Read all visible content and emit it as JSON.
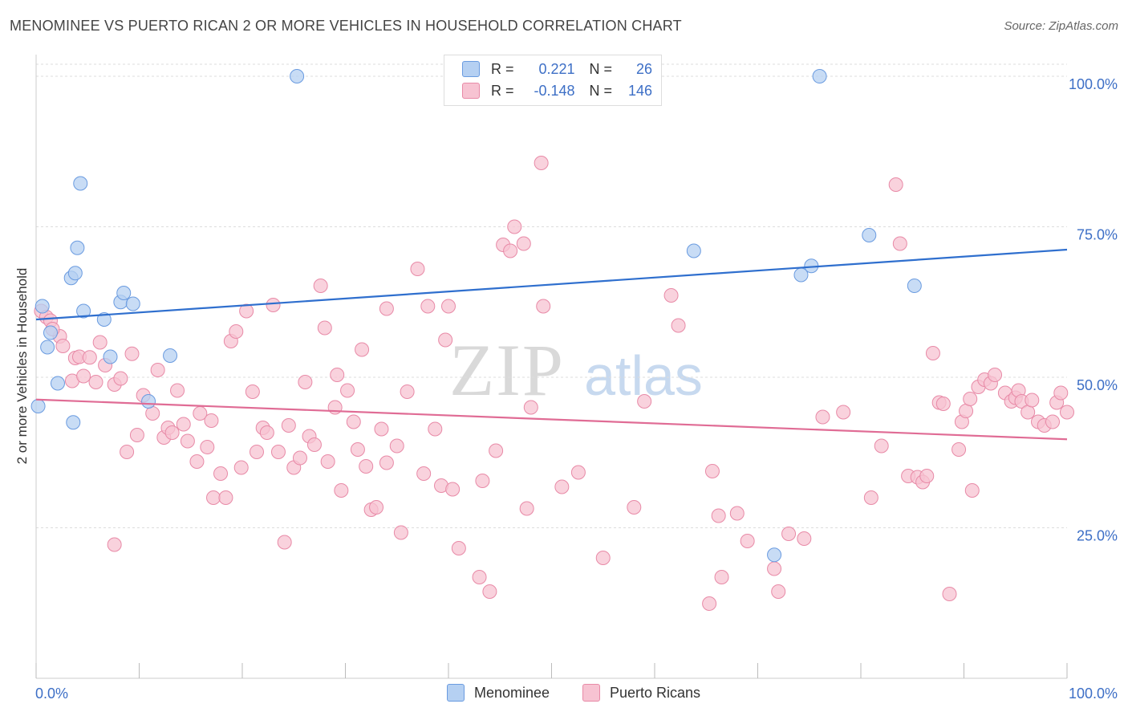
{
  "header": {
    "title": "MENOMINEE VS PUERTO RICAN 2 OR MORE VEHICLES IN HOUSEHOLD CORRELATION CHART",
    "source": "Source: ZipAtlas.com"
  },
  "watermark": {
    "zip": "ZIP",
    "atlas": "atlas"
  },
  "legend": {
    "rows": [
      {
        "r_label": "R =",
        "r_value": "0.221",
        "n_label": "N =",
        "n_value": "26"
      },
      {
        "r_label": "R =",
        "r_value": "-0.148",
        "n_label": "N =",
        "n_value": "146"
      }
    ]
  },
  "bottom_legend": {
    "series0": "Menominee",
    "series1": "Puerto Ricans"
  },
  "chart_data": {
    "type": "scatter",
    "title": "MENOMINEE VS PUERTO RICAN 2 OR MORE VEHICLES IN HOUSEHOLD CORRELATION CHART",
    "xlabel": "",
    "ylabel": "2 or more Vehicles in Household",
    "xlim": [
      0,
      100
    ],
    "ylim": [
      0,
      102
    ],
    "x_tick_labels": [
      "0.0%",
      "100.0%"
    ],
    "y_ticks": [
      25,
      50,
      75,
      100
    ],
    "y_tick_labels": [
      "25.0%",
      "50.0%",
      "75.0%",
      "100.0%"
    ],
    "grid": true,
    "colors": {
      "menominee_fill": "#b5d0f2",
      "menominee_stroke": "#6a9be0",
      "menominee_line": "#2f6fce",
      "pr_fill": "#f7c3d2",
      "pr_stroke": "#e88aa7",
      "pr_line": "#e06c95",
      "tick_text": "#3d6fc6",
      "grid": "#dddddd"
    },
    "series": [
      {
        "name": "Menominee",
        "trend": {
          "x0": 0,
          "y0": 59.6,
          "x1": 100,
          "y1": 71.2
        },
        "points": [
          [
            0.2,
            45.2
          ],
          [
            0.6,
            61.8
          ],
          [
            1.1,
            55.0
          ],
          [
            1.4,
            57.4
          ],
          [
            2.1,
            49.0
          ],
          [
            3.4,
            66.5
          ],
          [
            3.8,
            67.3
          ],
          [
            4.0,
            71.5
          ],
          [
            3.6,
            42.5
          ],
          [
            4.3,
            82.2
          ],
          [
            4.6,
            61.0
          ],
          [
            6.6,
            59.6
          ],
          [
            7.2,
            53.4
          ],
          [
            8.2,
            62.5
          ],
          [
            8.5,
            64.0
          ],
          [
            9.4,
            62.2
          ],
          [
            10.9,
            46.0
          ],
          [
            13.0,
            53.6
          ],
          [
            25.3,
            100.0
          ],
          [
            63.8,
            71.0
          ],
          [
            74.2,
            67.0
          ],
          [
            75.2,
            68.5
          ],
          [
            76.0,
            100.0
          ],
          [
            80.8,
            73.6
          ],
          [
            85.2,
            65.2
          ],
          [
            71.6,
            20.5
          ]
        ]
      },
      {
        "name": "Puerto Ricans",
        "trend": {
          "x0": 0,
          "y0": 46.3,
          "x1": 100,
          "y1": 39.7
        },
        "points": [
          [
            0.5,
            61.0
          ],
          [
            1.0,
            60.0
          ],
          [
            1.4,
            59.4
          ],
          [
            2.3,
            56.8
          ],
          [
            2.6,
            55.2
          ],
          [
            3.5,
            49.4
          ],
          [
            3.8,
            53.2
          ],
          [
            4.2,
            53.4
          ],
          [
            4.6,
            50.2
          ],
          [
            5.2,
            53.3
          ],
          [
            5.8,
            49.2
          ],
          [
            6.2,
            55.8
          ],
          [
            6.7,
            52.0
          ],
          [
            7.6,
            48.8
          ],
          [
            7.6,
            22.2
          ],
          [
            8.2,
            49.8
          ],
          [
            8.8,
            37.6
          ],
          [
            9.3,
            53.9
          ],
          [
            9.8,
            40.4
          ],
          [
            10.4,
            47.0
          ],
          [
            11.3,
            44.0
          ],
          [
            11.8,
            51.2
          ],
          [
            12.4,
            40.0
          ],
          [
            12.8,
            41.6
          ],
          [
            13.2,
            40.8
          ],
          [
            13.7,
            47.8
          ],
          [
            14.3,
            42.2
          ],
          [
            14.7,
            39.4
          ],
          [
            15.6,
            36.0
          ],
          [
            15.9,
            44.0
          ],
          [
            16.6,
            38.4
          ],
          [
            17.0,
            42.8
          ],
          [
            17.2,
            30.0
          ],
          [
            17.9,
            34.0
          ],
          [
            18.4,
            30.0
          ],
          [
            18.9,
            56.0
          ],
          [
            19.4,
            57.6
          ],
          [
            19.9,
            35.0
          ],
          [
            20.4,
            61.0
          ],
          [
            21.0,
            47.6
          ],
          [
            21.4,
            37.6
          ],
          [
            22.0,
            41.6
          ],
          [
            22.4,
            40.8
          ],
          [
            23.0,
            62.0
          ],
          [
            23.5,
            37.6
          ],
          [
            24.1,
            22.6
          ],
          [
            24.5,
            42.0
          ],
          [
            25.0,
            35.0
          ],
          [
            25.6,
            36.6
          ],
          [
            26.1,
            49.2
          ],
          [
            26.5,
            40.2
          ],
          [
            27.0,
            38.8
          ],
          [
            27.6,
            65.2
          ],
          [
            28.0,
            58.2
          ],
          [
            28.3,
            36.0
          ],
          [
            29.0,
            45.0
          ],
          [
            29.6,
            31.2
          ],
          [
            29.2,
            50.4
          ],
          [
            30.2,
            47.8
          ],
          [
            30.8,
            42.6
          ],
          [
            31.2,
            38.0
          ],
          [
            31.6,
            54.6
          ],
          [
            32.0,
            35.2
          ],
          [
            32.5,
            28.0
          ],
          [
            33.0,
            28.4
          ],
          [
            33.5,
            41.4
          ],
          [
            34.0,
            35.8
          ],
          [
            34.0,
            61.4
          ],
          [
            35.0,
            38.6
          ],
          [
            35.4,
            24.2
          ],
          [
            36.0,
            47.6
          ],
          [
            37.0,
            68.0
          ],
          [
            37.6,
            34.0
          ],
          [
            38.0,
            61.8
          ],
          [
            38.7,
            41.4
          ],
          [
            39.3,
            32.0
          ],
          [
            39.7,
            56.2
          ],
          [
            40.0,
            61.8
          ],
          [
            40.4,
            31.4
          ],
          [
            41.0,
            21.6
          ],
          [
            43.0,
            16.8
          ],
          [
            43.3,
            32.8
          ],
          [
            44.0,
            14.4
          ],
          [
            44.6,
            37.8
          ],
          [
            45.3,
            72.0
          ],
          [
            46.0,
            71.0
          ],
          [
            46.4,
            75.0
          ],
          [
            47.3,
            72.2
          ],
          [
            47.6,
            28.2
          ],
          [
            48.0,
            45.0
          ],
          [
            49.2,
            61.8
          ],
          [
            49.0,
            85.6
          ],
          [
            51.0,
            31.8
          ],
          [
            52.6,
            34.2
          ],
          [
            55.0,
            20.0
          ],
          [
            58.0,
            28.4
          ],
          [
            59.0,
            46.0
          ],
          [
            61.6,
            63.6
          ],
          [
            62.3,
            58.6
          ],
          [
            65.3,
            12.4
          ],
          [
            65.6,
            34.4
          ],
          [
            66.2,
            27.0
          ],
          [
            66.5,
            16.8
          ],
          [
            68.0,
            27.4
          ],
          [
            69.0,
            22.8
          ],
          [
            71.6,
            18.2
          ],
          [
            72.0,
            14.4
          ],
          [
            73.0,
            24.0
          ],
          [
            74.5,
            23.2
          ],
          [
            76.3,
            43.4
          ],
          [
            78.3,
            44.2
          ],
          [
            81.0,
            30.0
          ],
          [
            82.0,
            38.6
          ],
          [
            83.4,
            82.0
          ],
          [
            83.8,
            72.2
          ],
          [
            84.6,
            33.6
          ],
          [
            85.5,
            33.4
          ],
          [
            86.0,
            32.6
          ],
          [
            86.4,
            33.6
          ],
          [
            87.0,
            54.0
          ],
          [
            87.6,
            45.8
          ],
          [
            88.0,
            45.6
          ],
          [
            88.6,
            14.0
          ],
          [
            89.5,
            38.0
          ],
          [
            89.8,
            42.6
          ],
          [
            90.2,
            44.4
          ],
          [
            90.6,
            46.4
          ],
          [
            90.8,
            31.2
          ],
          [
            91.4,
            48.4
          ],
          [
            92.0,
            49.6
          ],
          [
            92.6,
            49.0
          ],
          [
            93.0,
            50.4
          ],
          [
            94.0,
            47.4
          ],
          [
            94.6,
            46.0
          ],
          [
            95.0,
            46.6
          ],
          [
            95.3,
            47.8
          ],
          [
            95.6,
            46.0
          ],
          [
            96.2,
            44.2
          ],
          [
            96.6,
            46.2
          ],
          [
            97.2,
            42.6
          ],
          [
            97.8,
            42.0
          ],
          [
            98.6,
            42.6
          ],
          [
            99.0,
            45.8
          ],
          [
            99.4,
            47.4
          ],
          [
            100.0,
            44.2
          ],
          [
            1.6,
            58.0
          ]
        ]
      }
    ]
  }
}
